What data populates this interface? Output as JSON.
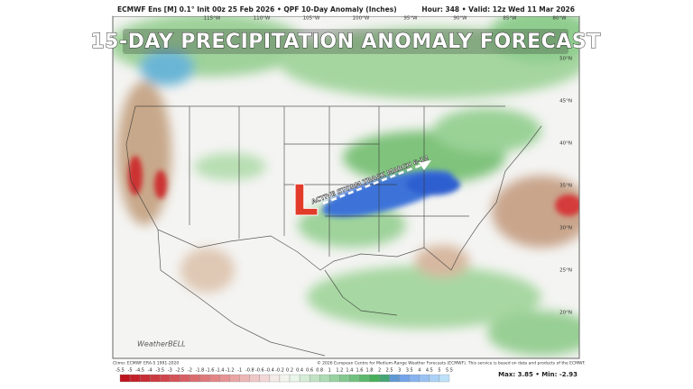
{
  "header": {
    "left": "ECMWF Ens [M] 0.1° Init 00z 25 Feb 2026 • QPF 10-Day Anomaly (Inches)",
    "right": "Hour: 348 • Valid: 12z Wed 11 Mar 2026"
  },
  "title": "15-DAY PRECIPITATION ANOMALY FORECAST",
  "annotation": {
    "low": "L",
    "track": "ACTIVE STORM TRACK MARCH 6-12"
  },
  "longitudes": [
    "115°W",
    "110°W",
    "105°W",
    "100°W",
    "95°W",
    "90°W",
    "85°W",
    "80°W"
  ],
  "latitudes": [
    "50°N",
    "45°N",
    "40°N",
    "35°N",
    "30°N",
    "25°N",
    "20°N"
  ],
  "watermark": "WeatherBELL",
  "footer": {
    "climo": "Climo: ECMWF ERA-5 1991-2020",
    "credit": "© 2026 European Centre for Medium-Range Weather Forecasts (ECMWF). This service is based on data and products of the ECMWF.",
    "maxmin": "Max: 3.85 • Min: -2.93"
  },
  "colorbar": {
    "labels": [
      "-5.5",
      "-5",
      "-4.5",
      "-4",
      "-3.5",
      "-3",
      "-2.5",
      "-2",
      "-1.8",
      "-1.6",
      "-1.4",
      "-1.2",
      "-1",
      "-0.8",
      "-0.6",
      "-0.4",
      "-0.2",
      "0.2",
      "0.4",
      "0.6",
      "0.8",
      "1",
      "1.2",
      "1.4",
      "1.6",
      "1.8",
      "2",
      "2.5",
      "3",
      "3.5",
      "4",
      "4.5",
      "5",
      "5.5"
    ]
  }
}
